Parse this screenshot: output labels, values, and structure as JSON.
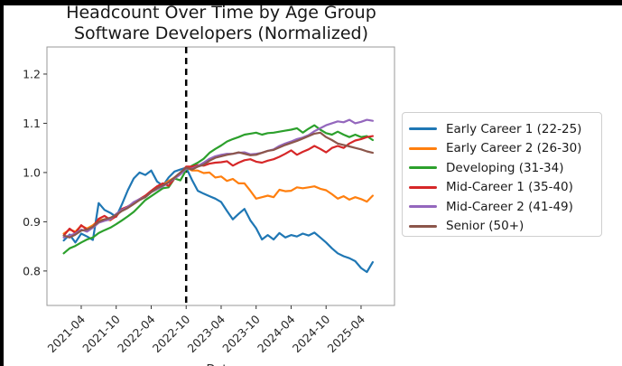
{
  "chart_data": {
    "type": "line",
    "title": "Headcount Over Time by Age Group",
    "subtitle": "Software Developers (Normalized)",
    "xlabel": "Date",
    "ylabel": "",
    "legend_position": "right",
    "grid": false,
    "ylim": [
      0.73,
      1.255
    ],
    "y_ticks": [
      "0.8",
      "0.9",
      "1.0",
      "1.1",
      "1.2"
    ],
    "x_tick_labels": [
      "2021-04",
      "2021-10",
      "2022-04",
      "2022-10",
      "2023-04",
      "2023-10",
      "2024-04",
      "2024-10",
      "2025-04"
    ],
    "vline": {
      "x_month": "2022-10",
      "style": "dashed",
      "color": "#000000"
    },
    "months": [
      "2021-01",
      "2021-02",
      "2021-03",
      "2021-04",
      "2021-05",
      "2021-06",
      "2021-07",
      "2021-08",
      "2021-09",
      "2021-10",
      "2021-11",
      "2021-12",
      "2022-01",
      "2022-02",
      "2022-03",
      "2022-04",
      "2022-05",
      "2022-06",
      "2022-07",
      "2022-08",
      "2022-09",
      "2022-10",
      "2022-11",
      "2022-12",
      "2023-01",
      "2023-02",
      "2023-03",
      "2023-04",
      "2023-05",
      "2023-06",
      "2023-07",
      "2023-08",
      "2023-09",
      "2023-10",
      "2023-11",
      "2023-12",
      "2024-01",
      "2024-02",
      "2024-03",
      "2024-04",
      "2024-05",
      "2024-06",
      "2024-07",
      "2024-08",
      "2024-09",
      "2024-10",
      "2024-11",
      "2024-12",
      "2025-01",
      "2025-02",
      "2025-03",
      "2025-04",
      "2025-05",
      "2025-06"
    ],
    "series": [
      {
        "name": "Early Career 1 (22-25)",
        "color": "#1f77b4",
        "values": [
          0.862,
          0.874,
          0.858,
          0.876,
          0.87,
          0.863,
          0.938,
          0.924,
          0.918,
          0.91,
          0.936,
          0.964,
          0.988,
          1.0,
          0.995,
          1.004,
          0.982,
          0.973,
          0.99,
          1.002,
          1.006,
          1.01,
          0.985,
          0.963,
          0.957,
          0.952,
          0.947,
          0.94,
          0.922,
          0.905,
          0.916,
          0.926,
          0.903,
          0.887,
          0.864,
          0.873,
          0.864,
          0.877,
          0.868,
          0.873,
          0.87,
          0.876,
          0.872,
          0.878,
          0.868,
          0.858,
          0.846,
          0.836,
          0.83,
          0.826,
          0.82,
          0.806,
          0.798,
          0.818
        ]
      },
      {
        "name": "Early Career 2 (26-30)",
        "color": "#ff7f0e",
        "values": [
          0.876,
          0.884,
          0.88,
          0.892,
          0.886,
          0.893,
          0.903,
          0.905,
          0.903,
          0.913,
          0.924,
          0.93,
          0.937,
          0.946,
          0.952,
          0.962,
          0.968,
          0.975,
          0.983,
          0.99,
          0.998,
          1.01,
          1.004,
          1.004,
          0.999,
          1.0,
          0.99,
          0.992,
          0.983,
          0.987,
          0.978,
          0.978,
          0.963,
          0.947,
          0.95,
          0.953,
          0.95,
          0.965,
          0.962,
          0.963,
          0.97,
          0.968,
          0.97,
          0.972,
          0.967,
          0.964,
          0.956,
          0.947,
          0.952,
          0.945,
          0.95,
          0.946,
          0.941,
          0.953
        ]
      },
      {
        "name": "Developing (31-34)",
        "color": "#2ca02c",
        "values": [
          0.836,
          0.846,
          0.851,
          0.858,
          0.864,
          0.868,
          0.877,
          0.883,
          0.888,
          0.895,
          0.903,
          0.911,
          0.92,
          0.932,
          0.944,
          0.952,
          0.96,
          0.968,
          0.97,
          0.988,
          0.984,
          1.005,
          1.014,
          1.02,
          1.028,
          1.04,
          1.048,
          1.055,
          1.063,
          1.068,
          1.072,
          1.077,
          1.079,
          1.081,
          1.077,
          1.08,
          1.081,
          1.083,
          1.085,
          1.087,
          1.09,
          1.081,
          1.089,
          1.096,
          1.087,
          1.08,
          1.077,
          1.083,
          1.077,
          1.072,
          1.077,
          1.072,
          1.074,
          1.066
        ]
      },
      {
        "name": "Mid-Career 1 (35-40)",
        "color": "#d62728",
        "values": [
          0.872,
          0.886,
          0.877,
          0.893,
          0.884,
          0.889,
          0.906,
          0.912,
          0.904,
          0.911,
          0.926,
          0.931,
          0.938,
          0.946,
          0.953,
          0.963,
          0.972,
          0.978,
          0.973,
          0.988,
          0.998,
          1.012,
          1.012,
          1.015,
          1.014,
          1.018,
          1.02,
          1.021,
          1.023,
          1.014,
          1.02,
          1.025,
          1.027,
          1.022,
          1.02,
          1.024,
          1.027,
          1.032,
          1.038,
          1.045,
          1.036,
          1.042,
          1.047,
          1.054,
          1.048,
          1.041,
          1.05,
          1.054,
          1.05,
          1.059,
          1.065,
          1.068,
          1.072,
          1.074
        ]
      },
      {
        "name": "Mid-Career 2 (41-49)",
        "color": "#9467bd",
        "values": [
          0.868,
          0.872,
          0.876,
          0.884,
          0.88,
          0.888,
          0.898,
          0.902,
          0.905,
          0.916,
          0.924,
          0.93,
          0.94,
          0.946,
          0.95,
          0.96,
          0.966,
          0.972,
          0.98,
          0.988,
          0.996,
          1.008,
          1.008,
          1.013,
          1.02,
          1.028,
          1.033,
          1.036,
          1.038,
          1.038,
          1.04,
          1.041,
          1.037,
          1.038,
          1.04,
          1.044,
          1.047,
          1.054,
          1.059,
          1.063,
          1.068,
          1.071,
          1.076,
          1.084,
          1.09,
          1.096,
          1.1,
          1.104,
          1.102,
          1.107,
          1.1,
          1.103,
          1.107,
          1.105
        ]
      },
      {
        "name": "Senior (50+)",
        "color": "#8c564b",
        "values": [
          0.872,
          0.868,
          0.874,
          0.882,
          0.884,
          0.89,
          0.9,
          0.905,
          0.908,
          0.914,
          0.922,
          0.928,
          0.936,
          0.944,
          0.95,
          0.96,
          0.968,
          0.974,
          0.98,
          0.99,
          1.0,
          1.01,
          1.006,
          1.012,
          1.016,
          1.024,
          1.03,
          1.033,
          1.036,
          1.038,
          1.041,
          1.038,
          1.035,
          1.036,
          1.04,
          1.044,
          1.046,
          1.051,
          1.056,
          1.06,
          1.064,
          1.069,
          1.074,
          1.079,
          1.081,
          1.072,
          1.066,
          1.059,
          1.056,
          1.053,
          1.05,
          1.047,
          1.043,
          1.04
        ]
      }
    ]
  }
}
